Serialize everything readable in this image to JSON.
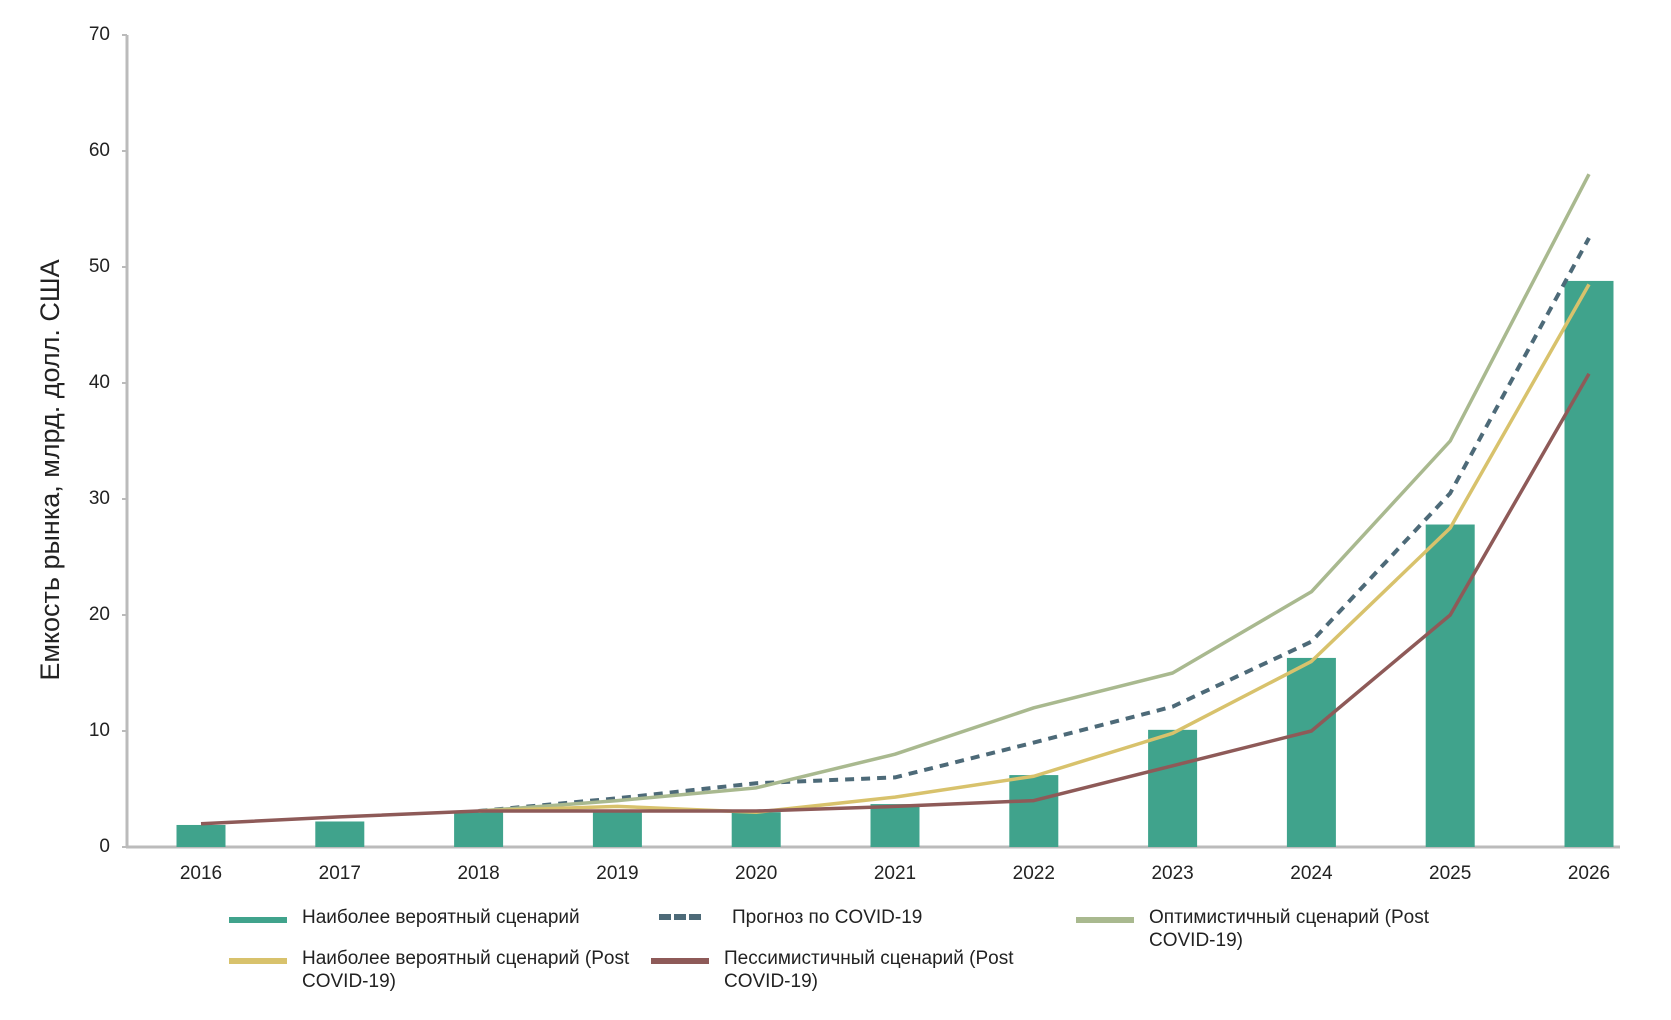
{
  "chart_data": {
    "type": "bar",
    "y_label": "Емкость рынка, млрд. долл. США",
    "categories": [
      "2016",
      "2017",
      "2018",
      "2019",
      "2020",
      "2021",
      "2022",
      "2023",
      "2024",
      "2025",
      "2026"
    ],
    "ylim": [
      0,
      70
    ],
    "yticks": [
      0,
      10,
      20,
      30,
      40,
      50,
      60,
      70
    ],
    "grid": false,
    "series": [
      {
        "name": "Наиболее вероятный сценарий",
        "type": "bar",
        "color": "#40a38c",
        "values": [
          1.9,
          2.2,
          3.0,
          3.0,
          3.0,
          3.7,
          6.2,
          10.1,
          16.3,
          27.8,
          48.8
        ]
      },
      {
        "name": "Прогноз по COVID-19",
        "type": "line",
        "dashed": true,
        "color": "#4d6a78",
        "values": [
          null,
          null,
          3.1,
          4.2,
          5.5,
          6.0,
          9.0,
          12.1,
          17.7,
          30.5,
          52.5
        ]
      },
      {
        "name": "Оптимистичный сценарий (Post COVID-19)",
        "type": "line",
        "color": "#a9b98f",
        "values": [
          null,
          null,
          3.1,
          4.0,
          5.1,
          8.0,
          12.0,
          15.0,
          22.0,
          35.0,
          58.0
        ]
      },
      {
        "name": "Наиболее вероятный сценарий (Post COVID-19)",
        "type": "line",
        "color": "#d8c26c",
        "values": [
          null,
          null,
          3.1,
          3.5,
          3.0,
          4.3,
          6.1,
          9.8,
          16.0,
          27.5,
          48.5
        ]
      },
      {
        "name": "Пессимистичный сценарий (Post COVID-19)",
        "type": "line",
        "color": "#8e5a58",
        "values": [
          2.0,
          2.6,
          3.1,
          3.1,
          3.1,
          3.5,
          4.0,
          7.0,
          10.0,
          20.0,
          40.8
        ]
      }
    ]
  }
}
